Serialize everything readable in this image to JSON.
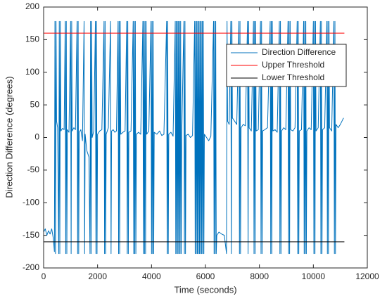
{
  "chart_data": {
    "type": "line",
    "xlabel": "Time (seconds)",
    "ylabel": "Direction Difference (degrees)",
    "xlim": [
      0,
      12000
    ],
    "xticks": [
      0,
      2000,
      4000,
      6000,
      8000,
      10000,
      12000
    ],
    "ylim": [
      -200,
      200
    ],
    "yticks": [
      -200,
      -150,
      -100,
      -50,
      0,
      50,
      100,
      150,
      200
    ],
    "grid": false,
    "legend": "northeast",
    "series": [
      {
        "name": "Direction Difference",
        "color": "#0072BD",
        "x": [
          0,
          60,
          120,
          180,
          240,
          300,
          360,
          400,
          420,
          440,
          460,
          480,
          520,
          560,
          580,
          600,
          620,
          640,
          700,
          760,
          800,
          820,
          840,
          860,
          880,
          940,
          1000,
          1020,
          1040,
          1060,
          1120,
          1180,
          1240,
          1260,
          1280,
          1300,
          1320,
          1380,
          1440,
          1500,
          1520,
          1540,
          1600,
          1640,
          1680,
          1720,
          1740,
          1760,
          1780,
          1800,
          1860,
          1920,
          1940,
          1960,
          1980,
          2000,
          2080,
          2160,
          2240,
          2260,
          2280,
          2300,
          2320,
          2400,
          2480,
          2500,
          2520,
          2580,
          2640,
          2700,
          2760,
          2780,
          2800,
          2820,
          2840,
          2860,
          2940,
          3020,
          3080,
          3100,
          3120,
          3140,
          3160,
          3240,
          3320,
          3340,
          3360,
          3380,
          3400,
          3420,
          3440,
          3520,
          3600,
          3680,
          3700,
          3720,
          3740,
          3760,
          3780,
          3800,
          3820,
          3900,
          3980,
          4000,
          4020,
          4040,
          4060,
          4080,
          4100,
          4200,
          4300,
          4380,
          4460,
          4560,
          4580,
          4600,
          4620,
          4640,
          4720,
          4800,
          4880,
          4900,
          4920,
          4940,
          4960,
          4980,
          5000,
          5020,
          5040,
          5060,
          5080,
          5100,
          5120,
          5200,
          5220,
          5240,
          5260,
          5280,
          5360,
          5440,
          5520,
          5600,
          5620,
          5640,
          5660,
          5680,
          5700,
          5720,
          5740,
          5760,
          5780,
          5800,
          5820,
          5840,
          5860,
          5880,
          5900,
          5920,
          5940,
          5960,
          6040,
          6120,
          6200,
          6300,
          6320,
          6340,
          6360,
          6380,
          6400,
          6420,
          6500,
          6600,
          6700,
          6780,
          6800,
          6820,
          6880,
          6940,
          6960,
          6980,
          7000,
          7080,
          7160,
          7240,
          7260,
          7280,
          7300,
          7320,
          7400,
          7480,
          7560,
          7580,
          7600,
          7620,
          7700,
          7780,
          7800,
          7820,
          7840,
          7860,
          7880,
          7960,
          8040,
          8060,
          8080,
          8100,
          8120,
          8200,
          8300,
          8400,
          8420,
          8440,
          8460,
          8480,
          8500,
          8580,
          8660,
          8740,
          8760,
          8780,
          8800,
          8820,
          8900,
          8980,
          9060,
          9080,
          9100,
          9120,
          9140,
          9160,
          9240,
          9320,
          9400,
          9420,
          9440,
          9460,
          9480,
          9560,
          9640,
          9660,
          9680,
          9700,
          9720,
          9740,
          9760,
          9840,
          9920,
          10000,
          10020,
          10040,
          10060,
          10080,
          10100,
          10180,
          10260,
          10280,
          10300,
          10320,
          10340,
          10420,
          10500,
          10520,
          10540,
          10560,
          10580,
          10600,
          10680,
          10760,
          10780,
          10800,
          10820,
          10840,
          10920,
          11000,
          11060,
          11120
        ],
        "values": [
          -145,
          -140,
          -150,
          -143,
          -148,
          -140,
          -155,
          -175,
          178,
          -178,
          178,
          25,
          15,
          -178,
          178,
          -178,
          178,
          10,
          14,
          12,
          178,
          -178,
          178,
          -178,
          12,
          8,
          178,
          -178,
          178,
          10,
          15,
          12,
          178,
          -178,
          178,
          -178,
          8,
          12,
          -5,
          178,
          -178,
          5,
          -20,
          -25,
          -30,
          -178,
          178,
          -178,
          178,
          0,
          10,
          178,
          -178,
          178,
          -178,
          5,
          10,
          12,
          178,
          -178,
          178,
          -178,
          5,
          15,
          178,
          -178,
          10,
          12,
          8,
          10,
          178,
          -178,
          178,
          -178,
          178,
          5,
          8,
          10,
          178,
          -178,
          178,
          -178,
          8,
          10,
          178,
          -178,
          178,
          -178,
          178,
          -178,
          5,
          8,
          5,
          178,
          -178,
          178,
          -178,
          178,
          -178,
          178,
          5,
          10,
          178,
          -178,
          178,
          -178,
          178,
          -178,
          8,
          5,
          10,
          3,
          5,
          178,
          -178,
          178,
          -178,
          5,
          8,
          2,
          178,
          -178,
          178,
          -178,
          178,
          -178,
          178,
          -178,
          178,
          -178,
          178,
          -178,
          5,
          178,
          -178,
          178,
          -178,
          3,
          5,
          0,
          3,
          178,
          -178,
          178,
          -178,
          178,
          -178,
          178,
          -178,
          178,
          -178,
          178,
          -178,
          178,
          -178,
          178,
          -178,
          178,
          -178,
          5,
          0,
          -5,
          2,
          178,
          -178,
          178,
          -178,
          178,
          -178,
          -150,
          -145,
          -148,
          -150,
          -178,
          178,
          25,
          20,
          178,
          -178,
          178,
          30,
          25,
          20,
          178,
          -178,
          178,
          -178,
          15,
          20,
          18,
          178,
          -178,
          178,
          15,
          10,
          178,
          -178,
          178,
          -178,
          178,
          10,
          12,
          178,
          -178,
          178,
          -178,
          10,
          12,
          15,
          178,
          -178,
          178,
          -178,
          178,
          10,
          12,
          8,
          178,
          -178,
          178,
          -178,
          10,
          15,
          12,
          178,
          -178,
          178,
          -178,
          178,
          12,
          10,
          15,
          178,
          -178,
          178,
          -178,
          10,
          12,
          178,
          -178,
          178,
          -178,
          178,
          -178,
          10,
          15,
          12,
          178,
          -178,
          178,
          -178,
          178,
          10,
          15,
          178,
          -178,
          178,
          -178,
          12,
          15,
          178,
          -178,
          178,
          -178,
          178,
          15,
          10,
          178,
          -178,
          178,
          -178,
          20,
          15,
          20,
          25,
          30
        ]
      },
      {
        "name": "Upper Threshold",
        "color": "#FF0000",
        "x": [
          0,
          11150
        ],
        "values": [
          160,
          160
        ]
      },
      {
        "name": "Lower Threshold",
        "color": "#000000",
        "x": [
          0,
          11150
        ],
        "values": [
          -160,
          -160
        ]
      }
    ]
  }
}
